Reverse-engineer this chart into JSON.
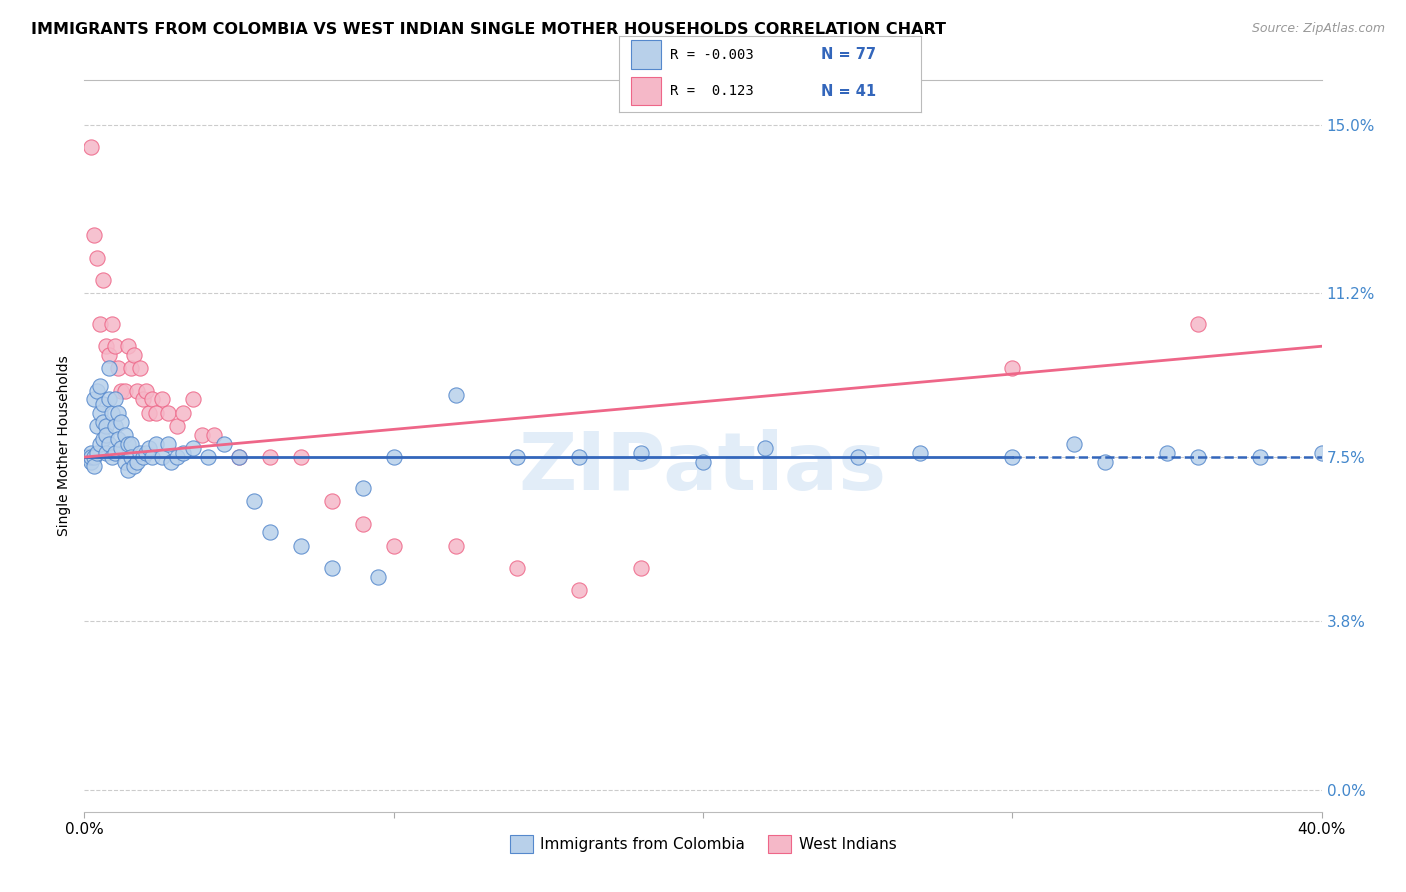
{
  "title": "IMMIGRANTS FROM COLOMBIA VS WEST INDIAN SINGLE MOTHER HOUSEHOLDS CORRELATION CHART",
  "source": "Source: ZipAtlas.com",
  "ylabel": "Single Mother Households",
  "ytick_labels": [
    "0.0%",
    "3.8%",
    "7.5%",
    "11.2%",
    "15.0%"
  ],
  "ytick_values": [
    0.0,
    3.8,
    7.5,
    11.2,
    15.0
  ],
  "xlim": [
    0.0,
    40.0
  ],
  "ylim": [
    -0.5,
    16.0
  ],
  "color_blue": "#b8d0ea",
  "color_pink": "#f5b8c8",
  "edge_blue": "#5588cc",
  "edge_pink": "#ee6688",
  "line_blue": "#3366bb",
  "line_pink": "#ee6688",
  "watermark": "ZIPatlas",
  "colombia_x": [
    0.1,
    0.1,
    0.2,
    0.2,
    0.2,
    0.3,
    0.3,
    0.3,
    0.4,
    0.4,
    0.4,
    0.5,
    0.5,
    0.5,
    0.6,
    0.6,
    0.6,
    0.7,
    0.7,
    0.7,
    0.8,
    0.8,
    0.8,
    0.9,
    0.9,
    1.0,
    1.0,
    1.0,
    1.1,
    1.1,
    1.2,
    1.2,
    1.3,
    1.3,
    1.4,
    1.4,
    1.5,
    1.5,
    1.6,
    1.7,
    1.8,
    1.9,
    2.0,
    2.1,
    2.2,
    2.3,
    2.5,
    2.7,
    2.8,
    3.0,
    3.2,
    3.5,
    4.0,
    4.5,
    5.0,
    5.5,
    6.0,
    7.0,
    8.0,
    9.0,
    9.5,
    10.0,
    12.0,
    14.0,
    16.0,
    18.0,
    20.0,
    22.0,
    25.0,
    27.0,
    30.0,
    32.0,
    33.0,
    35.0,
    36.0,
    38.0,
    40.0
  ],
  "colombia_y": [
    7.5,
    7.5,
    7.6,
    7.4,
    7.5,
    8.8,
    7.5,
    7.3,
    9.0,
    8.2,
    7.6,
    9.1,
    8.5,
    7.8,
    8.7,
    8.3,
    7.9,
    8.2,
    8.0,
    7.6,
    9.5,
    8.8,
    7.8,
    8.5,
    7.5,
    8.8,
    8.2,
    7.6,
    8.5,
    7.9,
    8.3,
    7.7,
    8.0,
    7.4,
    7.8,
    7.2,
    7.8,
    7.5,
    7.3,
    7.4,
    7.6,
    7.5,
    7.6,
    7.7,
    7.5,
    7.8,
    7.5,
    7.8,
    7.4,
    7.5,
    7.6,
    7.7,
    7.5,
    7.8,
    7.5,
    6.5,
    5.8,
    5.5,
    5.0,
    6.8,
    4.8,
    7.5,
    8.9,
    7.5,
    7.5,
    7.6,
    7.4,
    7.7,
    7.5,
    7.6,
    7.5,
    7.8,
    7.4,
    7.6,
    7.5,
    7.5,
    7.6
  ],
  "westindian_x": [
    0.2,
    0.3,
    0.4,
    0.5,
    0.6,
    0.7,
    0.8,
    0.9,
    1.0,
    1.1,
    1.2,
    1.3,
    1.4,
    1.5,
    1.6,
    1.7,
    1.8,
    1.9,
    2.0,
    2.1,
    2.2,
    2.3,
    2.5,
    2.7,
    3.0,
    3.2,
    3.5,
    3.8,
    4.2,
    5.0,
    6.0,
    7.0,
    8.0,
    9.0,
    10.0,
    12.0,
    14.0,
    16.0,
    18.0,
    30.0,
    36.0
  ],
  "westindian_y": [
    14.5,
    12.5,
    12.0,
    10.5,
    11.5,
    10.0,
    9.8,
    10.5,
    10.0,
    9.5,
    9.0,
    9.0,
    10.0,
    9.5,
    9.8,
    9.0,
    9.5,
    8.8,
    9.0,
    8.5,
    8.8,
    8.5,
    8.8,
    8.5,
    8.2,
    8.5,
    8.8,
    8.0,
    8.0,
    7.5,
    7.5,
    7.5,
    6.5,
    6.0,
    5.5,
    5.5,
    5.0,
    4.5,
    5.0,
    9.5,
    10.5
  ],
  "blue_line_x0": 0,
  "blue_line_y0": 7.5,
  "blue_line_x1": 40,
  "blue_line_y1": 7.5,
  "blue_solid_end": 30,
  "pink_line_x0": 0,
  "pink_line_y0": 7.5,
  "pink_line_x1": 40,
  "pink_line_y1": 10.0
}
